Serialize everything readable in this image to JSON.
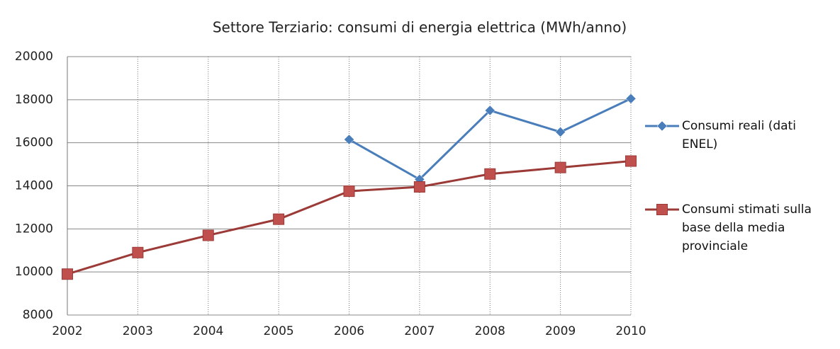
{
  "chart_data": {
    "type": "line",
    "title": "Settore Terziario: consumi di energia elettrica (MWh/anno)",
    "categories": [
      "2002",
      "2003",
      "2004",
      "2005",
      "2006",
      "2007",
      "2008",
      "2009",
      "2010"
    ],
    "series": [
      {
        "name": "Consumi reali (dati ENEL)",
        "color": "#4a7ebb",
        "marker": "diamond",
        "values": [
          null,
          null,
          null,
          null,
          16150,
          14300,
          17500,
          16500,
          18050
        ]
      },
      {
        "name": "Consumi stimati sulla base della media provinciale",
        "color": "#9b3a37",
        "marker": "square",
        "values": [
          9900,
          10900,
          11700,
          12450,
          13750,
          13950,
          14550,
          14850,
          15150
        ]
      }
    ],
    "ylim": [
      8000,
      20000
    ],
    "yticks": [
      8000,
      10000,
      12000,
      14000,
      16000,
      18000,
      20000
    ],
    "grid": true,
    "legend": "right"
  }
}
